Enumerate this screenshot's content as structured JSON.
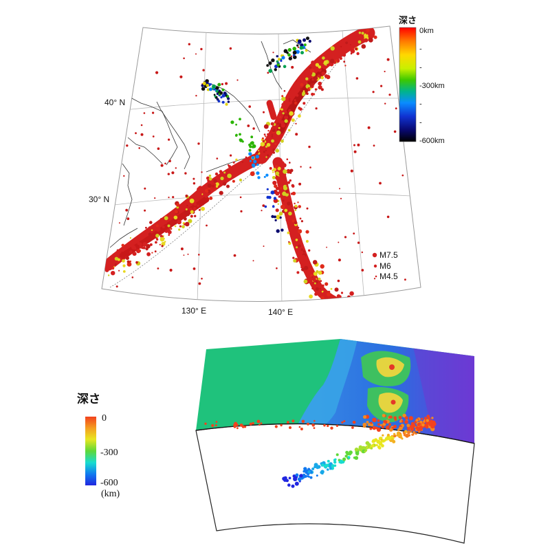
{
  "top_map": {
    "grid_labels": {
      "lat_40": "40° N",
      "lat_30": "30° N",
      "lon_130": "130° E",
      "lon_140": "140° E"
    },
    "depth_legend": {
      "title": "深さ",
      "ticks": [
        {
          "label": "0km",
          "depth": 0
        },
        {
          "label": "-",
          "depth": -100
        },
        {
          "label": "-",
          "depth": -200
        },
        {
          "label": "-300km",
          "depth": -300
        },
        {
          "label": "-",
          "depth": -400
        },
        {
          "label": "-",
          "depth": -500
        },
        {
          "label": "-600km",
          "depth": -600
        }
      ],
      "colors": [
        "#ff0000",
        "#ff7a00",
        "#ffd800",
        "#e6ff00",
        "#6ee000",
        "#00b400",
        "#00b8a8",
        "#0a78ff",
        "#1032d0",
        "#08086e",
        "#000000"
      ]
    },
    "magnitude_legend": [
      {
        "label": "M7.5",
        "magnitude": 7.5
      },
      {
        "label": "M6",
        "magnitude": 6
      },
      {
        "label": "M4.5",
        "magnitude": 4.5
      }
    ]
  },
  "cross_section": {
    "depth_legend": {
      "title": "深さ",
      "ticks": [
        {
          "label": "0",
          "depth": 0
        },
        {
          "label": "-300",
          "depth": -300
        },
        {
          "label": "-600",
          "depth": -600
        }
      ],
      "unit": "(km)",
      "colors": [
        "#f2421e",
        "#f4a020",
        "#e8e620",
        "#5ed838",
        "#18dcd0",
        "#1078f0",
        "#2026e0"
      ]
    },
    "terrain_colors": {
      "sea_deep": "#6038d8",
      "sea": "#2a74e8",
      "shelf": "#3aa6e6",
      "lowland": "#2ec27a",
      "upland": "#e8d640",
      "summit": "#e43828"
    }
  }
}
